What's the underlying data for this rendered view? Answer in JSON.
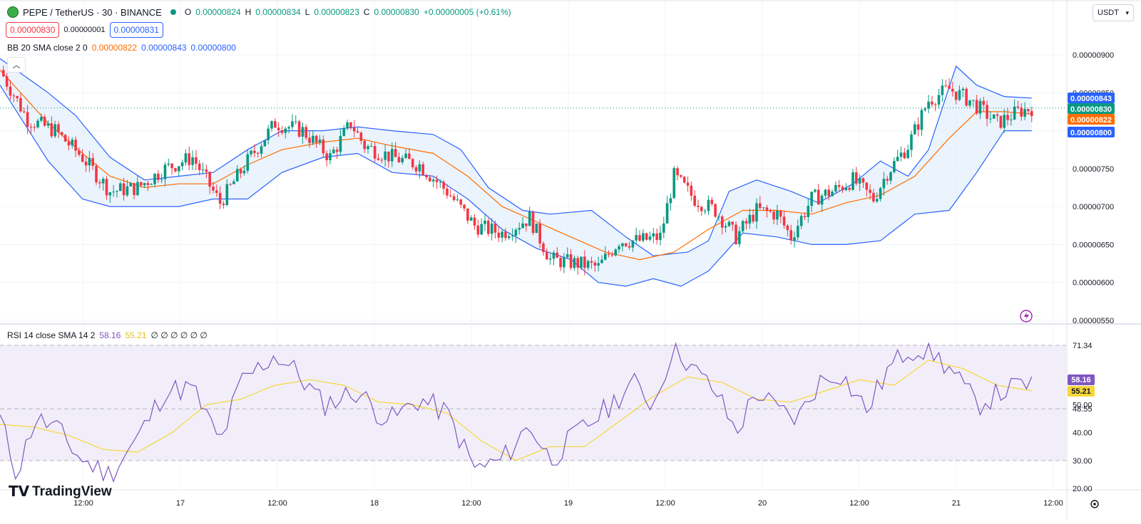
{
  "header": {
    "symbol_title": "PEPE / TetherUS · 30 · BINANCE",
    "ohlc": [
      {
        "label": "O",
        "value": "0.00000824"
      },
      {
        "label": "H",
        "value": "0.00000834"
      },
      {
        "label": "L",
        "value": "0.00000823"
      },
      {
        "label": "C",
        "value": "0.00000830"
      }
    ],
    "change": "+0.00000005 (+0.61%)",
    "sell_price": "0.00000830",
    "spread": "0.00000001",
    "buy_price": "0.00000831",
    "currency_select": "USDT"
  },
  "bb_legend": {
    "title": "BB 20 SMA close 2 0",
    "basis": "0.00000822",
    "upper": "0.00000843",
    "lower": "0.00000800"
  },
  "rsi_legend": {
    "title": "RSI 14 close SMA 14 2",
    "rsi": "58.16",
    "sma": "55.21",
    "placeholders": "∅ ∅ ∅ ∅ ∅ ∅"
  },
  "brand": {
    "name": "TradingView"
  },
  "colors": {
    "up": "#089981",
    "down": "#f23645",
    "bb_band": "#2962ff",
    "bb_basis": "#ff6d00",
    "rsi_line": "#7e57c2",
    "rsi_sma": "#f5d73b",
    "fill": "#e3eefb",
    "rsi_fill": "#ede7f6"
  },
  "chart_data": [
    {
      "type": "candlestick",
      "title": "PEPE / TetherUS · 30 · BINANCE",
      "price_axis_ticks": [
        "0.00000900",
        "0.00000850",
        "0.00000800",
        "0.00000750",
        "0.00000700",
        "0.00000650",
        "0.00000600",
        "0.00000550"
      ],
      "ylim": [
        5.5e-06,
        9e-06
      ],
      "time_axis_ticks": [
        "12:00",
        "17",
        "12:00",
        "18",
        "12:00",
        "19",
        "12:00",
        "20",
        "12:00",
        "21",
        "12:00"
      ],
      "price_labels": [
        {
          "value": "0.00000843",
          "series": "bb_upper"
        },
        {
          "value": "0.00000830",
          "series": "last_price"
        },
        {
          "value": "0.00000822",
          "series": "bb_basis"
        },
        {
          "value": "0.00000800",
          "series": "bb_lower"
        }
      ],
      "close_points": [
        {
          "t": 0,
          "c": 8.8
        },
        {
          "t": 8,
          "c": 8.15
        },
        {
          "t": 16,
          "c": 8.0
        },
        {
          "t": 24,
          "c": 7.65
        },
        {
          "t": 32,
          "c": 7.2
        },
        {
          "t": 40,
          "c": 7.25
        },
        {
          "t": 48,
          "c": 7.5
        },
        {
          "t": 56,
          "c": 7.65
        },
        {
          "t": 64,
          "c": 7.05
        },
        {
          "t": 72,
          "c": 7.6
        },
        {
          "t": 80,
          "c": 8.1
        },
        {
          "t": 88,
          "c": 8.0
        },
        {
          "t": 96,
          "c": 7.65
        },
        {
          "t": 102,
          "c": 8.1
        },
        {
          "t": 106,
          "c": 7.8
        },
        {
          "t": 114,
          "c": 7.65
        },
        {
          "t": 122,
          "c": 7.55
        },
        {
          "t": 130,
          "c": 7.2
        },
        {
          "t": 138,
          "c": 6.75
        },
        {
          "t": 146,
          "c": 6.65
        },
        {
          "t": 154,
          "c": 6.85
        },
        {
          "t": 160,
          "c": 6.3
        },
        {
          "t": 168,
          "c": 6.25
        },
        {
          "t": 174,
          "c": 6.2
        },
        {
          "t": 180,
          "c": 6.55
        },
        {
          "t": 186,
          "c": 6.55
        },
        {
          "t": 192,
          "c": 6.6
        },
        {
          "t": 196,
          "c": 7.4
        },
        {
          "t": 202,
          "c": 7.1
        },
        {
          "t": 208,
          "c": 6.95
        },
        {
          "t": 214,
          "c": 6.6
        },
        {
          "t": 220,
          "c": 6.95
        },
        {
          "t": 226,
          "c": 6.9
        },
        {
          "t": 230,
          "c": 6.6
        },
        {
          "t": 236,
          "c": 7.1
        },
        {
          "t": 242,
          "c": 7.2
        },
        {
          "t": 248,
          "c": 7.35
        },
        {
          "t": 254,
          "c": 7.1
        },
        {
          "t": 258,
          "c": 7.45
        },
        {
          "t": 264,
          "c": 7.8
        },
        {
          "t": 270,
          "c": 8.4
        },
        {
          "t": 276,
          "c": 8.55
        },
        {
          "t": 282,
          "c": 8.4
        },
        {
          "t": 286,
          "c": 8.25
        },
        {
          "t": 290,
          "c": 8.1
        },
        {
          "t": 296,
          "c": 8.25
        },
        {
          "t": 300,
          "c": 8.3
        }
      ],
      "bollinger_bands": {
        "upper": [
          {
            "t": 0,
            "v": 8.95
          },
          {
            "t": 14,
            "v": 8.5
          },
          {
            "t": 22,
            "v": 8.2
          },
          {
            "t": 32,
            "v": 7.65
          },
          {
            "t": 42,
            "v": 7.35
          },
          {
            "t": 52,
            "v": 7.4
          },
          {
            "t": 62,
            "v": 7.45
          },
          {
            "t": 72,
            "v": 7.75
          },
          {
            "t": 82,
            "v": 8.0
          },
          {
            "t": 94,
            "v": 8.0
          },
          {
            "t": 104,
            "v": 8.05
          },
          {
            "t": 114,
            "v": 8.0
          },
          {
            "t": 126,
            "v": 7.95
          },
          {
            "t": 134,
            "v": 7.75
          },
          {
            "t": 142,
            "v": 7.25
          },
          {
            "t": 152,
            "v": 6.95
          },
          {
            "t": 160,
            "v": 6.9
          },
          {
            "t": 172,
            "v": 6.95
          },
          {
            "t": 182,
            "v": 6.6
          },
          {
            "t": 190,
            "v": 6.35
          },
          {
            "t": 200,
            "v": 6.4
          },
          {
            "t": 206,
            "v": 6.55
          },
          {
            "t": 212,
            "v": 7.2
          },
          {
            "t": 220,
            "v": 7.35
          },
          {
            "t": 230,
            "v": 7.2
          },
          {
            "t": 238,
            "v": 7.05
          },
          {
            "t": 248,
            "v": 7.3
          },
          {
            "t": 256,
            "v": 7.6
          },
          {
            "t": 264,
            "v": 7.4
          },
          {
            "t": 270,
            "v": 7.75
          },
          {
            "t": 278,
            "v": 8.85
          },
          {
            "t": 284,
            "v": 8.6
          },
          {
            "t": 292,
            "v": 8.45
          },
          {
            "t": 300,
            "v": 8.43
          }
        ],
        "basis": [
          {
            "t": 0,
            "v": 8.8
          },
          {
            "t": 14,
            "v": 8.1
          },
          {
            "t": 24,
            "v": 7.7
          },
          {
            "t": 32,
            "v": 7.4
          },
          {
            "t": 42,
            "v": 7.25
          },
          {
            "t": 52,
            "v": 7.3
          },
          {
            "t": 62,
            "v": 7.3
          },
          {
            "t": 72,
            "v": 7.55
          },
          {
            "t": 82,
            "v": 7.75
          },
          {
            "t": 94,
            "v": 7.85
          },
          {
            "t": 104,
            "v": 7.9
          },
          {
            "t": 114,
            "v": 7.8
          },
          {
            "t": 126,
            "v": 7.7
          },
          {
            "t": 136,
            "v": 7.4
          },
          {
            "t": 146,
            "v": 7.0
          },
          {
            "t": 156,
            "v": 6.8
          },
          {
            "t": 166,
            "v": 6.6
          },
          {
            "t": 176,
            "v": 6.4
          },
          {
            "t": 186,
            "v": 6.3
          },
          {
            "t": 196,
            "v": 6.4
          },
          {
            "t": 206,
            "v": 6.7
          },
          {
            "t": 216,
            "v": 6.95
          },
          {
            "t": 226,
            "v": 6.95
          },
          {
            "t": 236,
            "v": 6.9
          },
          {
            "t": 246,
            "v": 7.05
          },
          {
            "t": 256,
            "v": 7.15
          },
          {
            "t": 266,
            "v": 7.4
          },
          {
            "t": 276,
            "v": 7.9
          },
          {
            "t": 284,
            "v": 8.25
          },
          {
            "t": 292,
            "v": 8.25
          },
          {
            "t": 300,
            "v": 8.22
          }
        ],
        "lower": [
          {
            "t": 0,
            "v": 8.6
          },
          {
            "t": 14,
            "v": 7.6
          },
          {
            "t": 24,
            "v": 7.1
          },
          {
            "t": 32,
            "v": 7.0
          },
          {
            "t": 42,
            "v": 7.0
          },
          {
            "t": 52,
            "v": 7.0
          },
          {
            "t": 62,
            "v": 7.1
          },
          {
            "t": 72,
            "v": 7.1
          },
          {
            "t": 82,
            "v": 7.45
          },
          {
            "t": 94,
            "v": 7.65
          },
          {
            "t": 104,
            "v": 7.7
          },
          {
            "t": 114,
            "v": 7.45
          },
          {
            "t": 126,
            "v": 7.4
          },
          {
            "t": 136,
            "v": 7.1
          },
          {
            "t": 146,
            "v": 6.7
          },
          {
            "t": 156,
            "v": 6.45
          },
          {
            "t": 166,
            "v": 6.3
          },
          {
            "t": 174,
            "v": 6.0
          },
          {
            "t": 182,
            "v": 5.95
          },
          {
            "t": 190,
            "v": 6.05
          },
          {
            "t": 198,
            "v": 5.95
          },
          {
            "t": 206,
            "v": 6.15
          },
          {
            "t": 216,
            "v": 6.65
          },
          {
            "t": 226,
            "v": 6.6
          },
          {
            "t": 236,
            "v": 6.5
          },
          {
            "t": 246,
            "v": 6.5
          },
          {
            "t": 256,
            "v": 6.55
          },
          {
            "t": 266,
            "v": 6.9
          },
          {
            "t": 276,
            "v": 6.95
          },
          {
            "t": 284,
            "v": 7.45
          },
          {
            "t": 292,
            "v": 8.0
          },
          {
            "t": 300,
            "v": 8.0
          }
        ]
      }
    },
    {
      "type": "line",
      "title": "RSI 14 close SMA 14 2",
      "rsi_axis_ticks": [
        "71.34",
        "60.00",
        "50.00",
        "48.55",
        "40.00",
        "30.00",
        "20.00"
      ],
      "ylim": [
        20,
        75
      ],
      "price_labels": [
        {
          "value": "58.16",
          "series": "rsi"
        },
        {
          "value": "55.21",
          "series": "rsi_sma"
        }
      ],
      "series": [
        {
          "name": "RSI",
          "points": [
            {
              "t": 0,
              "v": 45
            },
            {
              "t": 5,
              "v": 25
            },
            {
              "t": 10,
              "v": 45
            },
            {
              "t": 16,
              "v": 42
            },
            {
              "t": 24,
              "v": 30
            },
            {
              "t": 32,
              "v": 25
            },
            {
              "t": 40,
              "v": 38
            },
            {
              "t": 48,
              "v": 55
            },
            {
              "t": 56,
              "v": 56
            },
            {
              "t": 64,
              "v": 36
            },
            {
              "t": 70,
              "v": 58
            },
            {
              "t": 80,
              "v": 68
            },
            {
              "t": 86,
              "v": 62
            },
            {
              "t": 94,
              "v": 50
            },
            {
              "t": 104,
              "v": 55
            },
            {
              "t": 110,
              "v": 47
            },
            {
              "t": 114,
              "v": 45
            },
            {
              "t": 122,
              "v": 52
            },
            {
              "t": 130,
              "v": 47
            },
            {
              "t": 138,
              "v": 27
            },
            {
              "t": 146,
              "v": 30
            },
            {
              "t": 154,
              "v": 43
            },
            {
              "t": 160,
              "v": 30
            },
            {
              "t": 168,
              "v": 40
            },
            {
              "t": 176,
              "v": 48
            },
            {
              "t": 184,
              "v": 58
            },
            {
              "t": 190,
              "v": 50
            },
            {
              "t": 196,
              "v": 72
            },
            {
              "t": 202,
              "v": 62
            },
            {
              "t": 208,
              "v": 55
            },
            {
              "t": 214,
              "v": 40
            },
            {
              "t": 220,
              "v": 55
            },
            {
              "t": 226,
              "v": 48
            },
            {
              "t": 232,
              "v": 45
            },
            {
              "t": 238,
              "v": 58
            },
            {
              "t": 244,
              "v": 62
            },
            {
              "t": 252,
              "v": 48
            },
            {
              "t": 258,
              "v": 62
            },
            {
              "t": 264,
              "v": 70
            },
            {
              "t": 270,
              "v": 70
            },
            {
              "t": 276,
              "v": 63
            },
            {
              "t": 284,
              "v": 50
            },
            {
              "t": 292,
              "v": 55
            },
            {
              "t": 300,
              "v": 58
            }
          ]
        },
        {
          "name": "SMA",
          "points": [
            {
              "t": 0,
              "v": 43
            },
            {
              "t": 10,
              "v": 42
            },
            {
              "t": 20,
              "v": 39
            },
            {
              "t": 30,
              "v": 34
            },
            {
              "t": 40,
              "v": 33
            },
            {
              "t": 50,
              "v": 40
            },
            {
              "t": 60,
              "v": 50
            },
            {
              "t": 70,
              "v": 52
            },
            {
              "t": 80,
              "v": 57
            },
            {
              "t": 90,
              "v": 59
            },
            {
              "t": 100,
              "v": 57
            },
            {
              "t": 110,
              "v": 51
            },
            {
              "t": 120,
              "v": 50
            },
            {
              "t": 130,
              "v": 47
            },
            {
              "t": 140,
              "v": 37
            },
            {
              "t": 150,
              "v": 30
            },
            {
              "t": 160,
              "v": 35
            },
            {
              "t": 170,
              "v": 35
            },
            {
              "t": 180,
              "v": 44
            },
            {
              "t": 190,
              "v": 53
            },
            {
              "t": 200,
              "v": 60
            },
            {
              "t": 210,
              "v": 58
            },
            {
              "t": 220,
              "v": 52
            },
            {
              "t": 230,
              "v": 51
            },
            {
              "t": 240,
              "v": 55
            },
            {
              "t": 250,
              "v": 59
            },
            {
              "t": 260,
              "v": 57
            },
            {
              "t": 270,
              "v": 66
            },
            {
              "t": 280,
              "v": 63
            },
            {
              "t": 290,
              "v": 57
            },
            {
              "t": 300,
              "v": 55
            }
          ]
        }
      ]
    }
  ]
}
